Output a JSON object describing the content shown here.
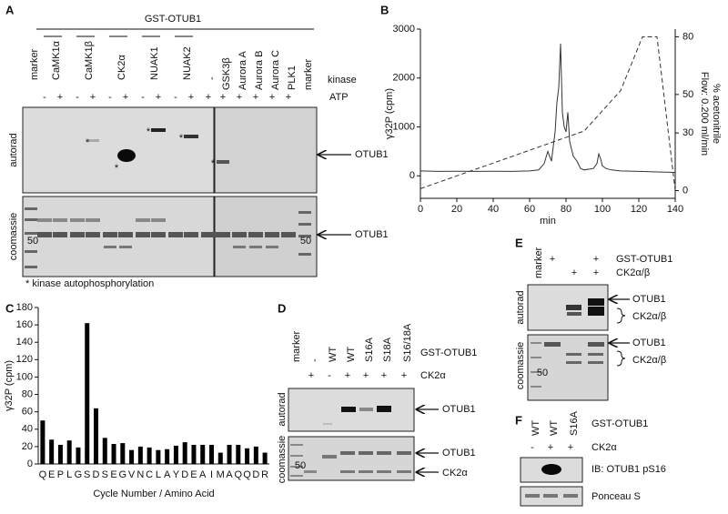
{
  "panels": {
    "A": {
      "label": "A",
      "title": "GST-OTUB1",
      "lanes": [
        "marker",
        "CaMK1α",
        "CaMK1β",
        "CK2α",
        "NUAK1",
        "NUAK2",
        "-",
        "GSK3β",
        "Aurora A",
        "Aurora B",
        "Aurora C",
        "PLK1",
        "marker"
      ],
      "kinase_label": "kinase",
      "atp_label": "ATP",
      "atp": [
        "-",
        "+",
        "-",
        "+",
        "-",
        "+",
        "-",
        "+",
        "-",
        "+",
        "+",
        "+",
        "+",
        "+",
        "+",
        "+"
      ],
      "autorad": "autorad",
      "coomassie": "coomassie",
      "protein": "OTUB1",
      "marker_size": "50",
      "asterisk": "*",
      "footnote": "* kinase autophosphorylation"
    },
    "B": {
      "label": "B"
    },
    "C": {
      "label": "C"
    },
    "D": {
      "label": "D",
      "lanes": [
        "marker",
        "-",
        "WT",
        "WT",
        "S16A",
        "S18A",
        "S16/18A"
      ],
      "construct_label": "GST-OTUB1",
      "ck2": [
        "+",
        "-",
        "+",
        "+",
        "+",
        "+"
      ],
      "ck2_label": "CK2α",
      "autorad": "autorad",
      "coomassie": "coomassie",
      "protein": "OTUB1",
      "kinase": "CK2α",
      "marker_size": "50"
    },
    "E": {
      "label": "E",
      "lanes": [
        "marker"
      ],
      "construct_label": "GST-OTUB1",
      "gst": [
        "+",
        null,
        "+"
      ],
      "ck2_label": "CK2α/β",
      "ck2": [
        null,
        "+",
        "+"
      ],
      "autorad": "autorad",
      "coomassie": "coomassie",
      "protein": "OTUB1",
      "kinase": "CK2α/β",
      "marker_size": "50"
    },
    "F": {
      "label": "F",
      "lanes": [
        "WT",
        "WT",
        "S16A"
      ],
      "construct_label": "GST-OTUB1",
      "ck2_label": "CK2α",
      "ck2": [
        "-",
        "+",
        "+"
      ],
      "ib": "IB: OTUB1 pS16",
      "ponceau": "Ponceau S"
    }
  },
  "chart_data": [
    {
      "type": "line",
      "x_label": "min",
      "y_label": "γ32P (cpm)",
      "y2_label": "% acetonitrile",
      "y2_annotation": "Flow: 0.200 ml/min",
      "xlim": [
        0,
        140
      ],
      "xticks": [
        0,
        20,
        40,
        60,
        80,
        100,
        120,
        140
      ],
      "ylim": [
        -460,
        3000
      ],
      "yticks": [
        0,
        1000,
        2000,
        3000
      ],
      "y2lim": [
        -4,
        84
      ],
      "y2ticks": [
        0,
        30,
        50,
        80
      ],
      "series": [
        {
          "style": "solid",
          "color": "#333333",
          "x": [
            0,
            10,
            20,
            30,
            40,
            50,
            60,
            65,
            68,
            70,
            72,
            74,
            75,
            76,
            77,
            78,
            79,
            80,
            81,
            82,
            84,
            86,
            88,
            90,
            95,
            97,
            98,
            99,
            100,
            102,
            105,
            110,
            120,
            130,
            140
          ],
          "values": [
            100,
            90,
            95,
            90,
            95,
            90,
            100,
            120,
            250,
            500,
            300,
            900,
            1500,
            1800,
            2700,
            1300,
            1000,
            900,
            1300,
            700,
            400,
            300,
            150,
            120,
            150,
            250,
            450,
            350,
            200,
            150,
            120,
            100,
            90,
            80,
            70
          ]
        },
        {
          "style": "dashed",
          "color": "#333333",
          "axis": "y2",
          "x": [
            0,
            90,
            110,
            122,
            130,
            140
          ],
          "values": [
            1,
            31,
            52,
            80,
            80,
            0
          ]
        }
      ]
    },
    {
      "type": "bar",
      "y_label": "γ32P (cpm)",
      "x_label": "Cycle Number / Amino Acid",
      "color": "#000000",
      "categories": [
        "Q",
        "E",
        "P",
        "L",
        "G",
        "S",
        "D",
        "S",
        "E",
        "G",
        "V",
        "N",
        "C",
        "L",
        "A",
        "Y",
        "D",
        "E",
        "A",
        "I",
        "M",
        "A",
        "Q",
        "Q",
        "D",
        "R"
      ],
      "values": [
        50,
        28,
        22,
        27,
        19,
        162,
        64,
        30,
        23,
        24,
        16,
        20,
        19,
        16,
        17,
        21,
        25,
        22,
        22,
        22,
        13,
        22,
        22,
        18,
        20,
        13
      ],
      "ylim": [
        0,
        180
      ],
      "yticks": [
        0,
        20,
        40,
        60,
        80,
        100,
        120,
        140,
        160,
        180
      ]
    }
  ]
}
